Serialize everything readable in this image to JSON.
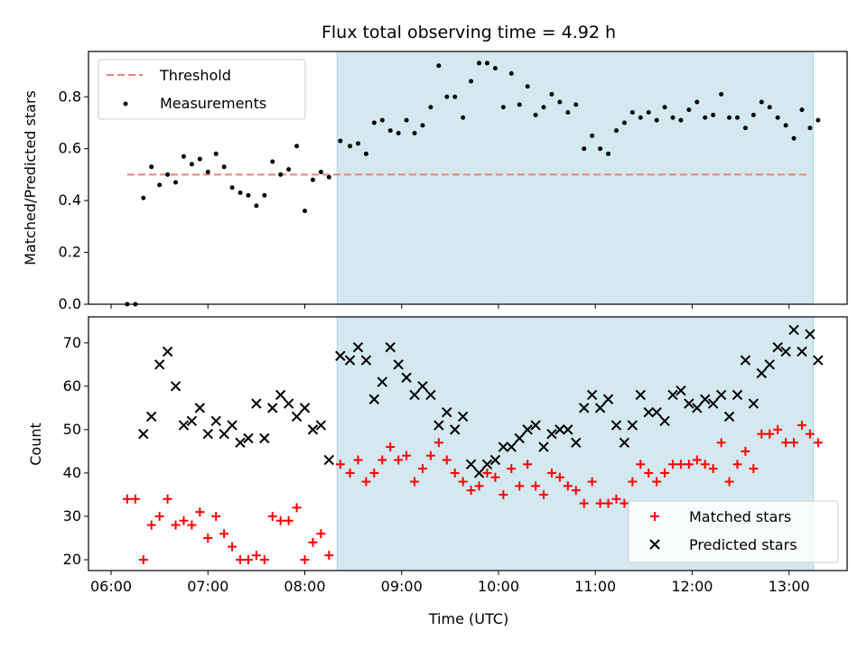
{
  "chart_data": [
    {
      "type": "scatter",
      "title": "Flux total observing time = 4.92 h",
      "xlabel": "",
      "ylabel": "Matched/Predicted stars",
      "ylim": [
        0,
        0.975
      ],
      "yticks": [
        "0.0",
        "0.2",
        "0.4",
        "0.6",
        "0.8"
      ],
      "highlight_span": {
        "from": "08:20",
        "to": "13:15",
        "color": "#d3e9ef"
      },
      "threshold": {
        "name": "Threshold",
        "value": 0.5,
        "from": "06:10",
        "to": "13:13",
        "color": "#f08080"
      },
      "legend_position": "upper-left",
      "series": [
        {
          "name": "Measurements",
          "color": "#000000",
          "points": [
            [
              "06:10",
              0.0
            ],
            [
              "06:15",
              0.0
            ],
            [
              "06:20",
              0.41
            ],
            [
              "06:25",
              0.53
            ],
            [
              "06:30",
              0.46
            ],
            [
              "06:35",
              0.5
            ],
            [
              "06:40",
              0.47
            ],
            [
              "06:45",
              0.57
            ],
            [
              "06:50",
              0.54
            ],
            [
              "06:55",
              0.56
            ],
            [
              "07:00",
              0.51
            ],
            [
              "07:05",
              0.58
            ],
            [
              "07:10",
              0.53
            ],
            [
              "07:15",
              0.45
            ],
            [
              "07:20",
              0.43
            ],
            [
              "07:25",
              0.42
            ],
            [
              "07:30",
              0.38
            ],
            [
              "07:35",
              0.42
            ],
            [
              "07:40",
              0.55
            ],
            [
              "07:45",
              0.5
            ],
            [
              "07:50",
              0.52
            ],
            [
              "07:55",
              0.61
            ],
            [
              "08:00",
              0.36
            ],
            [
              "08:05",
              0.48
            ],
            [
              "08:10",
              0.51
            ],
            [
              "08:15",
              0.49
            ],
            [
              "08:22",
              0.63
            ],
            [
              "08:28",
              0.61
            ],
            [
              "08:33",
              0.62
            ],
            [
              "08:38",
              0.58
            ],
            [
              "08:43",
              0.7
            ],
            [
              "08:48",
              0.71
            ],
            [
              "08:53",
              0.67
            ],
            [
              "08:58",
              0.66
            ],
            [
              "09:03",
              0.71
            ],
            [
              "09:08",
              0.66
            ],
            [
              "09:13",
              0.69
            ],
            [
              "09:18",
              0.76
            ],
            [
              "09:23",
              0.92
            ],
            [
              "09:28",
              0.8
            ],
            [
              "09:33",
              0.8
            ],
            [
              "09:38",
              0.72
            ],
            [
              "09:43",
              0.86
            ],
            [
              "09:48",
              0.93
            ],
            [
              "09:53",
              0.93
            ],
            [
              "09:58",
              0.91
            ],
            [
              "10:03",
              0.76
            ],
            [
              "10:08",
              0.89
            ],
            [
              "10:13",
              0.77
            ],
            [
              "10:18",
              0.84
            ],
            [
              "10:23",
              0.73
            ],
            [
              "10:28",
              0.76
            ],
            [
              "10:33",
              0.81
            ],
            [
              "10:38",
              0.78
            ],
            [
              "10:43",
              0.74
            ],
            [
              "10:48",
              0.77
            ],
            [
              "10:53",
              0.6
            ],
            [
              "10:58",
              0.65
            ],
            [
              "11:03",
              0.6
            ],
            [
              "11:08",
              0.58
            ],
            [
              "11:13",
              0.67
            ],
            [
              "11:18",
              0.7
            ],
            [
              "11:23",
              0.74
            ],
            [
              "11:28",
              0.72
            ],
            [
              "11:33",
              0.74
            ],
            [
              "11:38",
              0.71
            ],
            [
              "11:43",
              0.76
            ],
            [
              "11:48",
              0.72
            ],
            [
              "11:53",
              0.71
            ],
            [
              "11:58",
              0.75
            ],
            [
              "12:03",
              0.78
            ],
            [
              "12:08",
              0.72
            ],
            [
              "12:13",
              0.73
            ],
            [
              "12:18",
              0.81
            ],
            [
              "12:23",
              0.72
            ],
            [
              "12:28",
              0.72
            ],
            [
              "12:33",
              0.68
            ],
            [
              "12:38",
              0.73
            ],
            [
              "12:43",
              0.78
            ],
            [
              "12:48",
              0.76
            ],
            [
              "12:53",
              0.72
            ],
            [
              "12:58",
              0.69
            ],
            [
              "13:03",
              0.64
            ],
            [
              "13:08",
              0.75
            ],
            [
              "13:13",
              0.68
            ],
            [
              "13:18",
              0.71
            ]
          ]
        }
      ]
    },
    {
      "type": "scatter",
      "title": "",
      "xlabel": "Time (UTC)",
      "ylabel": "Count",
      "ylim": [
        17.5,
        76
      ],
      "yticks": [
        "20",
        "30",
        "40",
        "50",
        "60",
        "70"
      ],
      "xticks": [
        "06:00",
        "07:00",
        "08:00",
        "09:00",
        "10:00",
        "11:00",
        "12:00",
        "13:00"
      ],
      "highlight_span": {
        "from": "08:20",
        "to": "13:15",
        "color": "#d3e9ef"
      },
      "legend_position": "lower-right",
      "series": [
        {
          "name": "Matched stars",
          "marker": "+",
          "color": "#ff0000",
          "points": [
            [
              "06:10",
              34
            ],
            [
              "06:15",
              34
            ],
            [
              "06:20",
              20
            ],
            [
              "06:25",
              28
            ],
            [
              "06:30",
              30
            ],
            [
              "06:35",
              34
            ],
            [
              "06:40",
              28
            ],
            [
              "06:45",
              29
            ],
            [
              "06:50",
              28
            ],
            [
              "06:55",
              31
            ],
            [
              "07:00",
              25
            ],
            [
              "07:05",
              30
            ],
            [
              "07:10",
              26
            ],
            [
              "07:15",
              23
            ],
            [
              "07:20",
              20
            ],
            [
              "07:25",
              20
            ],
            [
              "07:30",
              21
            ],
            [
              "07:35",
              20
            ],
            [
              "07:40",
              30
            ],
            [
              "07:45",
              29
            ],
            [
              "07:50",
              29
            ],
            [
              "07:55",
              32
            ],
            [
              "08:00",
              20
            ],
            [
              "08:05",
              24
            ],
            [
              "08:10",
              26
            ],
            [
              "08:15",
              21
            ],
            [
              "08:22",
              42
            ],
            [
              "08:28",
              40
            ],
            [
              "08:33",
              43
            ],
            [
              "08:38",
              38
            ],
            [
              "08:43",
              40
            ],
            [
              "08:48",
              43
            ],
            [
              "08:53",
              46
            ],
            [
              "08:58",
              43
            ],
            [
              "09:03",
              44
            ],
            [
              "09:08",
              38
            ],
            [
              "09:13",
              41
            ],
            [
              "09:18",
              44
            ],
            [
              "09:23",
              47
            ],
            [
              "09:28",
              43
            ],
            [
              "09:33",
              40
            ],
            [
              "09:38",
              38
            ],
            [
              "09:43",
              36
            ],
            [
              "09:48",
              37
            ],
            [
              "09:53",
              40
            ],
            [
              "09:58",
              39
            ],
            [
              "10:03",
              35
            ],
            [
              "10:08",
              41
            ],
            [
              "10:13",
              37
            ],
            [
              "10:18",
              42
            ],
            [
              "10:23",
              37
            ],
            [
              "10:28",
              35
            ],
            [
              "10:33",
              40
            ],
            [
              "10:38",
              39
            ],
            [
              "10:43",
              37
            ],
            [
              "10:48",
              36
            ],
            [
              "10:53",
              33
            ],
            [
              "10:58",
              38
            ],
            [
              "11:03",
              33
            ],
            [
              "11:08",
              33
            ],
            [
              "11:13",
              34
            ],
            [
              "11:18",
              33
            ],
            [
              "11:23",
              38
            ],
            [
              "11:28",
              42
            ],
            [
              "11:33",
              40
            ],
            [
              "11:38",
              38
            ],
            [
              "11:43",
              40
            ],
            [
              "11:48",
              42
            ],
            [
              "11:53",
              42
            ],
            [
              "11:58",
              42
            ],
            [
              "12:03",
              43
            ],
            [
              "12:08",
              42
            ],
            [
              "12:13",
              41
            ],
            [
              "12:18",
              47
            ],
            [
              "12:23",
              38
            ],
            [
              "12:28",
              42
            ],
            [
              "12:33",
              45
            ],
            [
              "12:38",
              41
            ],
            [
              "12:43",
              49
            ],
            [
              "12:48",
              49
            ],
            [
              "12:53",
              50
            ],
            [
              "12:58",
              47
            ],
            [
              "13:03",
              47
            ],
            [
              "13:08",
              51
            ],
            [
              "13:13",
              49
            ],
            [
              "13:18",
              47
            ]
          ]
        },
        {
          "name": "Predicted stars",
          "marker": "x",
          "color": "#000000",
          "points": [
            [
              "06:20",
              49
            ],
            [
              "06:25",
              53
            ],
            [
              "06:30",
              65
            ],
            [
              "06:35",
              68
            ],
            [
              "06:40",
              60
            ],
            [
              "06:45",
              51
            ],
            [
              "06:50",
              52
            ],
            [
              "06:55",
              55
            ],
            [
              "07:00",
              49
            ],
            [
              "07:05",
              52
            ],
            [
              "07:10",
              49
            ],
            [
              "07:15",
              51
            ],
            [
              "07:20",
              47
            ],
            [
              "07:25",
              48
            ],
            [
              "07:30",
              56
            ],
            [
              "07:35",
              48
            ],
            [
              "07:40",
              55
            ],
            [
              "07:45",
              58
            ],
            [
              "07:50",
              56
            ],
            [
              "07:55",
              53
            ],
            [
              "08:00",
              55
            ],
            [
              "08:05",
              50
            ],
            [
              "08:10",
              51
            ],
            [
              "08:15",
              43
            ],
            [
              "08:22",
              67
            ],
            [
              "08:28",
              66
            ],
            [
              "08:33",
              69
            ],
            [
              "08:38",
              66
            ],
            [
              "08:43",
              57
            ],
            [
              "08:48",
              61
            ],
            [
              "08:53",
              69
            ],
            [
              "08:58",
              65
            ],
            [
              "09:03",
              62
            ],
            [
              "09:08",
              58
            ],
            [
              "09:13",
              60
            ],
            [
              "09:18",
              58
            ],
            [
              "09:23",
              51
            ],
            [
              "09:28",
              54
            ],
            [
              "09:33",
              50
            ],
            [
              "09:38",
              53
            ],
            [
              "09:43",
              42
            ],
            [
              "09:48",
              40
            ],
            [
              "09:53",
              42
            ],
            [
              "09:58",
              43
            ],
            [
              "10:03",
              46
            ],
            [
              "10:08",
              46
            ],
            [
              "10:13",
              48
            ],
            [
              "10:18",
              50
            ],
            [
              "10:23",
              51
            ],
            [
              "10:28",
              46
            ],
            [
              "10:33",
              49
            ],
            [
              "10:38",
              50
            ],
            [
              "10:43",
              50
            ],
            [
              "10:48",
              47
            ],
            [
              "10:53",
              55
            ],
            [
              "10:58",
              58
            ],
            [
              "11:03",
              55
            ],
            [
              "11:08",
              57
            ],
            [
              "11:13",
              51
            ],
            [
              "11:18",
              47
            ],
            [
              "11:23",
              51
            ],
            [
              "11:28",
              58
            ],
            [
              "11:33",
              54
            ],
            [
              "11:38",
              54
            ],
            [
              "11:43",
              52
            ],
            [
              "11:48",
              58
            ],
            [
              "11:53",
              59
            ],
            [
              "11:58",
              56
            ],
            [
              "12:03",
              55
            ],
            [
              "12:08",
              57
            ],
            [
              "12:13",
              56
            ],
            [
              "12:18",
              58
            ],
            [
              "12:23",
              53
            ],
            [
              "12:28",
              58
            ],
            [
              "12:33",
              66
            ],
            [
              "12:38",
              56
            ],
            [
              "12:43",
              63
            ],
            [
              "12:48",
              65
            ],
            [
              "12:53",
              69
            ],
            [
              "12:58",
              68
            ],
            [
              "13:03",
              73
            ],
            [
              "13:08",
              68
            ],
            [
              "13:13",
              72
            ],
            [
              "13:18",
              66
            ]
          ]
        }
      ]
    }
  ]
}
